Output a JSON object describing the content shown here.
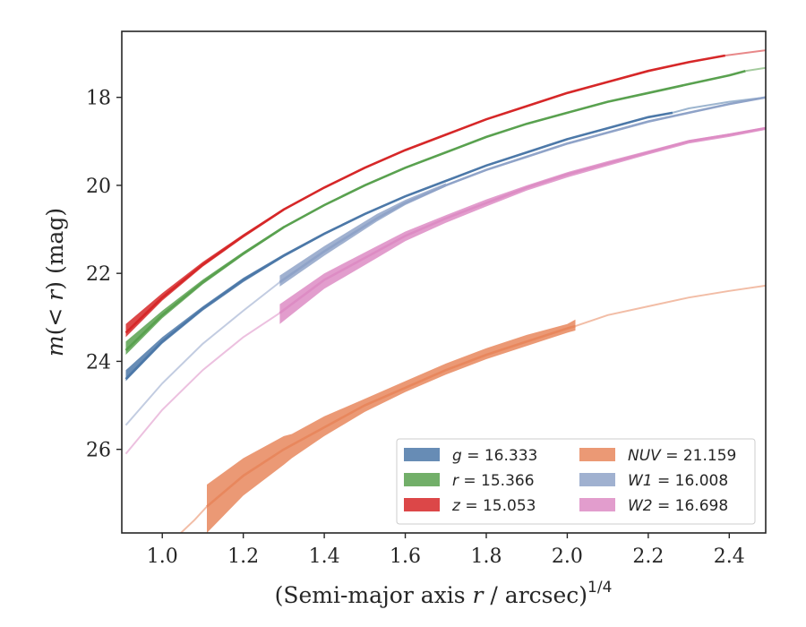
{
  "chart_data": {
    "type": "line",
    "xlabel": "(Semi-major axis r / arcsec)",
    "xlabel_parts": {
      "pre": "(Semi-major axis ",
      "var": "r",
      "post": " / arcsec)",
      "sup": "1/4"
    },
    "ylabel": "m(< r) (mag)",
    "ylabel_parts": {
      "var": "m",
      "mid": "(< ",
      "var2": "r",
      "post": ") (mag)"
    },
    "xlim": [
      0.9,
      2.49
    ],
    "ylim": [
      27.9,
      16.5
    ],
    "y_inverted": true,
    "xticks": [
      "1.0",
      "1.2",
      "1.4",
      "1.6",
      "1.8",
      "2.0",
      "2.2",
      "2.4"
    ],
    "yticks": [
      "18",
      "20",
      "22",
      "24",
      "26"
    ],
    "legend": {
      "placement": "lower-right",
      "columns": 2
    },
    "series": [
      {
        "name": "g = 16.333",
        "var": "g",
        "val": "16.333",
        "color": "#4c78a8",
        "x": [
          0.91,
          1.0,
          1.1,
          1.2,
          1.3,
          1.4,
          1.5,
          1.6,
          1.7,
          1.8,
          1.9,
          2.0,
          2.1,
          2.2,
          2.26
        ],
        "y": [
          24.4,
          23.55,
          22.8,
          22.15,
          21.6,
          21.1,
          20.65,
          20.25,
          19.9,
          19.55,
          19.25,
          18.95,
          18.7,
          18.45,
          18.35
        ],
        "band_x": [
          0.91,
          1.0,
          1.1,
          1.2,
          1.3,
          1.4,
          1.5,
          1.6,
          1.7,
          1.8,
          1.9,
          2.0,
          2.1,
          2.2,
          2.26
        ],
        "band_lo": [
          24.2,
          23.45,
          22.75,
          22.1,
          21.56,
          21.07,
          20.63,
          20.23,
          19.88,
          19.54,
          19.24,
          18.94,
          18.69,
          18.44,
          18.34
        ],
        "band_hi": [
          24.45,
          23.6,
          22.85,
          22.2,
          21.63,
          21.13,
          20.67,
          20.27,
          19.92,
          19.56,
          19.26,
          18.96,
          18.71,
          18.46,
          18.36
        ],
        "ext_x": [
          2.26,
          2.3,
          2.4,
          2.49
        ],
        "ext_y": [
          18.35,
          18.25,
          18.1,
          18.0
        ]
      },
      {
        "name": "r = 15.366",
        "var": "r",
        "val": "15.366",
        "color": "#59a14f",
        "x": [
          0.91,
          1.0,
          1.1,
          1.2,
          1.3,
          1.4,
          1.5,
          1.6,
          1.7,
          1.8,
          1.9,
          2.0,
          2.1,
          2.2,
          2.3,
          2.4,
          2.44
        ],
        "y": [
          23.75,
          22.95,
          22.2,
          21.55,
          20.95,
          20.45,
          20.0,
          19.6,
          19.25,
          18.9,
          18.6,
          18.35,
          18.1,
          17.9,
          17.7,
          17.5,
          17.4
        ],
        "band_x": [
          0.91,
          1.0,
          1.1,
          1.2,
          1.3
        ],
        "band_lo": [
          23.55,
          22.85,
          22.14,
          21.51,
          20.92
        ],
        "band_hi": [
          23.85,
          23.02,
          22.25,
          21.59,
          20.98
        ],
        "ext_x": [
          2.44,
          2.49
        ],
        "ext_y": [
          17.4,
          17.33
        ]
      },
      {
        "name": "z = 15.053",
        "var": "z",
        "val": "15.053",
        "color": "#d62728",
        "x": [
          0.91,
          1.0,
          1.1,
          1.2,
          1.3,
          1.4,
          1.5,
          1.6,
          1.7,
          1.8,
          1.9,
          2.0,
          2.1,
          2.2,
          2.3,
          2.39
        ],
        "y": [
          23.35,
          22.55,
          21.8,
          21.15,
          20.55,
          20.05,
          19.6,
          19.2,
          18.85,
          18.5,
          18.2,
          17.9,
          17.65,
          17.4,
          17.2,
          17.05
        ],
        "band_x": [
          0.91,
          1.0,
          1.1,
          1.2,
          1.3
        ],
        "band_lo": [
          23.15,
          22.45,
          21.74,
          21.11,
          20.52
        ],
        "band_hi": [
          23.45,
          22.62,
          21.85,
          21.19,
          20.58
        ],
        "ext_x": [
          2.39,
          2.49
        ],
        "ext_y": [
          17.05,
          16.93
        ]
      },
      {
        "name": "NUV = 21.159",
        "var": "NUV",
        "val": "21.159",
        "color": "#e8875d",
        "x": [
          1.11,
          1.2,
          1.3,
          1.4,
          1.5,
          1.6,
          1.7,
          1.8,
          1.9,
          2.0,
          2.02
        ],
        "y": [
          27.3,
          26.6,
          26.0,
          25.5,
          25.0,
          24.6,
          24.2,
          23.85,
          23.55,
          23.25,
          23.2
        ],
        "band_x": [
          1.11,
          1.2,
          1.3,
          1.32,
          1.4,
          1.5,
          1.6,
          1.7,
          1.8,
          1.9,
          2.0,
          2.02
        ],
        "band_lo": [
          26.8,
          26.2,
          25.7,
          25.65,
          25.25,
          24.85,
          24.45,
          24.05,
          23.7,
          23.4,
          23.15,
          23.05
        ],
        "band_hi": [
          27.9,
          27.05,
          26.35,
          26.2,
          25.7,
          25.15,
          24.7,
          24.3,
          23.95,
          23.65,
          23.35,
          23.3
        ],
        "pre_x": [
          1.04,
          1.08,
          1.11
        ],
        "pre_y": [
          27.95,
          27.6,
          27.3
        ],
        "ext_x": [
          2.02,
          2.1,
          2.2,
          2.3,
          2.4,
          2.49
        ],
        "ext_y": [
          23.2,
          22.95,
          22.75,
          22.55,
          22.4,
          22.28
        ]
      },
      {
        "name": "W1 = 16.008",
        "var": "W1",
        "val": "16.008",
        "color": "#8fa3c8",
        "x": [
          1.29,
          1.4,
          1.53,
          1.6,
          1.7,
          1.8,
          1.9,
          2.0,
          2.1,
          2.2,
          2.3,
          2.4,
          2.49
        ],
        "y": [
          22.2,
          21.5,
          20.75,
          20.4,
          20.0,
          19.65,
          19.35,
          19.05,
          18.8,
          18.55,
          18.35,
          18.15,
          18.0
        ],
        "band_x": [
          1.29,
          1.4,
          1.53,
          1.6,
          1.7
        ],
        "band_lo": [
          22.05,
          21.38,
          20.65,
          20.33,
          19.95
        ],
        "band_hi": [
          22.3,
          21.6,
          20.82,
          20.45,
          20.03
        ],
        "pre_x": [
          0.91,
          1.0,
          1.1,
          1.2,
          1.29
        ],
        "pre_y": [
          25.45,
          24.5,
          23.6,
          22.85,
          22.2
        ]
      },
      {
        "name": "W2 = 16.698",
        "var": "W2",
        "val": "16.698",
        "color": "#dd8cc4",
        "x": [
          1.29,
          1.4,
          1.53,
          1.6,
          1.7,
          1.8,
          1.9,
          2.0,
          2.1,
          2.2,
          2.3,
          2.4,
          2.49
        ],
        "y": [
          22.9,
          22.15,
          21.5,
          21.15,
          20.75,
          20.4,
          20.05,
          19.75,
          19.5,
          19.25,
          19.0,
          18.85,
          18.7
        ],
        "band_x": [
          1.29,
          1.4,
          1.53,
          1.6,
          1.7,
          1.8,
          1.9,
          2.0,
          2.1,
          2.2,
          2.3,
          2.4,
          2.49
        ],
        "band_lo": [
          22.7,
          22.0,
          21.38,
          21.05,
          20.68,
          20.32,
          20.0,
          19.7,
          19.45,
          19.21,
          18.97,
          18.82,
          18.67
        ],
        "band_hi": [
          23.15,
          22.35,
          21.65,
          21.27,
          20.85,
          20.48,
          20.12,
          19.82,
          19.56,
          19.3,
          19.05,
          18.9,
          18.74
        ],
        "pre_x": [
          0.91,
          1.0,
          1.1,
          1.2,
          1.29
        ],
        "pre_y": [
          26.1,
          25.1,
          24.2,
          23.45,
          22.9
        ]
      }
    ]
  }
}
